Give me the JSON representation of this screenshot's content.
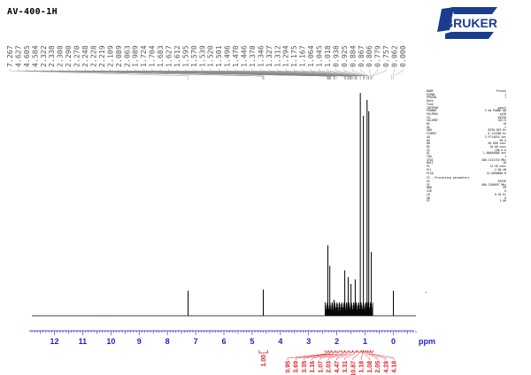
{
  "page": {
    "title": "AV-400-1H"
  },
  "logo": {
    "text": "BRUKER",
    "brand_color": "#1a3d8f",
    "icon": "bruker-logo-icon"
  },
  "colors": {
    "axis": "#1f1fd0",
    "integral": "#e0202a",
    "spectrum": "#000000",
    "peak_label": "#555555"
  },
  "chart_data": {
    "type": "line",
    "title": "",
    "xlabel": "ppm",
    "ylabel": "",
    "x_reversed": true,
    "xlim": [
      12.8,
      -0.8
    ],
    "x_ticks": [
      12,
      11,
      10,
      9,
      8,
      7,
      6,
      5,
      4,
      3,
      2,
      1,
      0
    ],
    "peak_labels": [
      "7.267",
      "4.627",
      "4.605",
      "4.584",
      "2.322",
      "2.338",
      "2.308",
      "2.290",
      "2.270",
      "2.248",
      "2.228",
      "2.219",
      "2.109",
      "2.089",
      "2.063",
      "1.989",
      "1.724",
      "1.704",
      "1.683",
      "1.627",
      "1.612",
      "1.595",
      "1.570",
      "1.539",
      "1.520",
      "1.501",
      "1.496",
      "1.470",
      "1.446",
      "1.378",
      "1.346",
      "1.327",
      "1.312",
      "1.294",
      "1.175",
      "1.167",
      "1.064",
      "1.045",
      "1.018",
      "0.938",
      "0.925",
      "0.884",
      "0.867",
      "0.806",
      "0.779",
      "0.757",
      "0.062",
      "0.000"
    ],
    "peaks": [
      {
        "ppm": 7.267,
        "height": 0.11
      },
      {
        "ppm": 4.605,
        "height": 0.115
      },
      {
        "ppm": 2.32,
        "height": 0.31
      },
      {
        "ppm": 2.25,
        "height": 0.22
      },
      {
        "ppm": 2.1,
        "height": 0.07
      },
      {
        "ppm": 1.72,
        "height": 0.2
      },
      {
        "ppm": 1.6,
        "height": 0.17
      },
      {
        "ppm": 1.5,
        "height": 0.14
      },
      {
        "ppm": 1.35,
        "height": 0.16
      },
      {
        "ppm": 1.17,
        "height": 0.98
      },
      {
        "ppm": 1.06,
        "height": 0.88
      },
      {
        "ppm": 0.93,
        "height": 0.95
      },
      {
        "ppm": 0.87,
        "height": 0.9
      },
      {
        "ppm": 0.78,
        "height": 0.28
      },
      {
        "ppm": 0.0,
        "height": 0.11
      }
    ],
    "integrals": [
      {
        "value": "1.00",
        "from": 4.75,
        "to": 4.45
      },
      {
        "value": "0.95",
        "from": 2.42,
        "to": 2.3
      },
      {
        "value": "3.69",
        "from": 2.3,
        "to": 2.2
      },
      {
        "value": "3.35",
        "from": 2.2,
        "to": 2.05
      },
      {
        "value": "1.16",
        "from": 2.05,
        "to": 1.9
      },
      {
        "value": "1.07",
        "from": 1.85,
        "to": 1.72
      },
      {
        "value": "2.03",
        "from": 1.72,
        "to": 1.58
      },
      {
        "value": "4.47",
        "from": 1.58,
        "to": 1.44
      },
      {
        "value": "3.31",
        "from": 1.44,
        "to": 1.3
      },
      {
        "value": "10.87",
        "from": 1.28,
        "to": 1.14
      },
      {
        "value": "1.18",
        "from": 1.12,
        "to": 1.06
      },
      {
        "value": "1.08",
        "from": 1.06,
        "to": 0.99
      },
      {
        "value": "2.05",
        "from": 0.98,
        "to": 0.9
      },
      {
        "value": "4.28",
        "from": 0.9,
        "to": 0.82
      },
      {
        "value": "4.18",
        "from": 0.82,
        "to": 0.72
      }
    ]
  },
  "acquisition_params": [
    {
      "key": "NAME",
      "value": "Proton"
    },
    {
      "key": "EXPNO",
      "value": "1"
    },
    {
      "key": "PROCNO",
      "value": "1"
    },
    {
      "key": "Date_",
      "value": ""
    },
    {
      "key": "Time",
      "value": ""
    },
    {
      "key": "INSTRUM",
      "value": "spect"
    },
    {
      "key": "PROBHD",
      "value": "5 mm PABBO BB"
    },
    {
      "key": "PULPROG",
      "value": "zg30"
    },
    {
      "key": "TD",
      "value": "65536"
    },
    {
      "key": "SOLVENT",
      "value": "CDCl3"
    },
    {
      "key": "NS",
      "value": "16"
    },
    {
      "key": "DS",
      "value": "2"
    },
    {
      "key": "SWH",
      "value": "8250.825 Hz"
    },
    {
      "key": "FIDRES",
      "value": "0.125900 Hz"
    },
    {
      "key": "AQ",
      "value": "3.9714816 sec"
    },
    {
      "key": "RG",
      "value": "90.5"
    },
    {
      "key": "DW",
      "value": "60.600 usec"
    },
    {
      "key": "DE",
      "value": "10.00 usec"
    },
    {
      "key": "TE",
      "value": "298.0 K"
    },
    {
      "key": "D1",
      "value": "1.00000000 sec"
    },
    {
      "key": "TD0",
      "value": "1"
    },
    {
      "key": "SFO1",
      "value": "400.1324710 MHz"
    },
    {
      "key": "NUC1",
      "value": "1H"
    },
    {
      "key": "P1",
      "value": "14.50 usec"
    },
    {
      "key": "PL1",
      "value": "-2.00 dB"
    },
    {
      "key": "PL1W",
      "value": "14.0000000 W"
    },
    {
      "key": "F2 - Processing parameters",
      "value": ""
    },
    {
      "key": "SI",
      "value": "65536"
    },
    {
      "key": "SF",
      "value": "400.1300097 MHz"
    },
    {
      "key": "WDW",
      "value": "EM"
    },
    {
      "key": "SSB",
      "value": "0"
    },
    {
      "key": "LB",
      "value": "0.30 Hz"
    },
    {
      "key": "GB",
      "value": "0"
    },
    {
      "key": "PC",
      "value": "1.00"
    }
  ]
}
